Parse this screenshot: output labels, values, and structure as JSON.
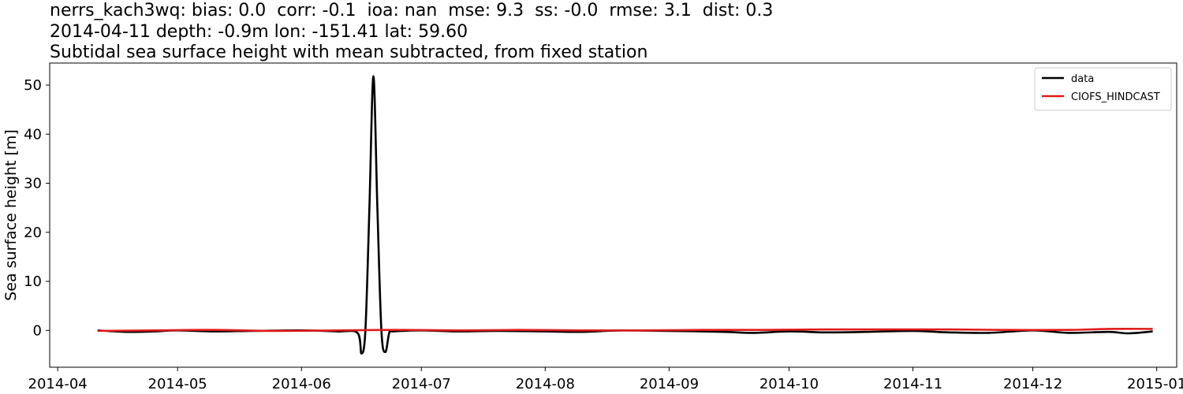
{
  "header": {
    "line1": "nerrs_kach3wq: bias: 0.0  corr: -0.1  ioa: nan  mse: 9.3  ss: -0.0  rmse: 3.1  dist: 0.3",
    "line2": "2014-04-11 depth: -0.9m lon: -151.41 lat: 59.60",
    "line3": "Subtidal sea surface height with mean subtracted, from fixed station"
  },
  "chart_data": {
    "type": "line",
    "title": "Subtidal sea surface height with mean subtracted, from fixed station",
    "xlabel": "",
    "ylabel": "Sea surface height [m]",
    "xlim": [
      "2014-03-30",
      "2015-01-06"
    ],
    "ylim": [
      -7.5,
      54.5
    ],
    "x_ticks": [
      "2014-04",
      "2014-05",
      "2014-06",
      "2014-07",
      "2014-08",
      "2014-09",
      "2014-10",
      "2014-11",
      "2014-12",
      "2015-01"
    ],
    "y_ticks": [
      0,
      10,
      20,
      30,
      40,
      50
    ],
    "grid": false,
    "legend_position": "top-right",
    "series": [
      {
        "name": "data",
        "color": "#000000",
        "points": [
          [
            "2014-04-11",
            0.0
          ],
          [
            "2014-04-18",
            -0.3
          ],
          [
            "2014-04-25",
            -0.2
          ],
          [
            "2014-05-01",
            0.0
          ],
          [
            "2014-05-10",
            -0.2
          ],
          [
            "2014-05-20",
            -0.1
          ],
          [
            "2014-06-01",
            0.0
          ],
          [
            "2014-06-10",
            -0.2
          ],
          [
            "2014-06-15",
            -0.5
          ],
          [
            "2014-06-16",
            -4.7
          ],
          [
            "2014-06-17",
            0.0
          ],
          [
            "2014-06-18",
            25.0
          ],
          [
            "2014-06-19",
            51.8
          ],
          [
            "2014-06-20",
            25.0
          ],
          [
            "2014-06-21",
            0.0
          ],
          [
            "2014-06-22",
            -4.4
          ],
          [
            "2014-06-23",
            -0.4
          ],
          [
            "2014-06-24",
            -0.2
          ],
          [
            "2014-07-01",
            0.0
          ],
          [
            "2014-07-10",
            -0.2
          ],
          [
            "2014-07-20",
            -0.1
          ],
          [
            "2014-08-01",
            -0.2
          ],
          [
            "2014-08-10",
            -0.3
          ],
          [
            "2014-08-20",
            0.0
          ],
          [
            "2014-09-01",
            -0.1
          ],
          [
            "2014-09-15",
            -0.3
          ],
          [
            "2014-09-22",
            -0.5
          ],
          [
            "2014-10-01",
            -0.2
          ],
          [
            "2014-10-10",
            -0.4
          ],
          [
            "2014-10-20",
            -0.3
          ],
          [
            "2014-11-01",
            -0.1
          ],
          [
            "2014-11-10",
            -0.4
          ],
          [
            "2014-11-20",
            -0.5
          ],
          [
            "2014-12-01",
            0.0
          ],
          [
            "2014-12-10",
            -0.5
          ],
          [
            "2014-12-20",
            -0.3
          ],
          [
            "2014-12-25",
            -0.6
          ],
          [
            "2014-12-31",
            -0.2
          ]
        ]
      },
      {
        "name": "CIOFS_HINDCAST",
        "color": "#e01b1b",
        "points": [
          [
            "2014-04-11",
            -0.1
          ],
          [
            "2014-04-25",
            0.0
          ],
          [
            "2014-05-10",
            0.1
          ],
          [
            "2014-05-25",
            -0.1
          ],
          [
            "2014-06-10",
            0.0
          ],
          [
            "2014-06-25",
            0.1
          ],
          [
            "2014-07-10",
            0.0
          ],
          [
            "2014-07-25",
            0.1
          ],
          [
            "2014-08-10",
            0.0
          ],
          [
            "2014-08-25",
            0.0
          ],
          [
            "2014-09-10",
            0.1
          ],
          [
            "2014-09-25",
            0.1
          ],
          [
            "2014-10-10",
            0.2
          ],
          [
            "2014-10-25",
            0.2
          ],
          [
            "2014-11-10",
            0.2
          ],
          [
            "2014-11-25",
            0.1
          ],
          [
            "2014-12-10",
            0.1
          ],
          [
            "2014-12-20",
            0.3
          ],
          [
            "2014-12-31",
            0.3
          ]
        ]
      }
    ]
  }
}
